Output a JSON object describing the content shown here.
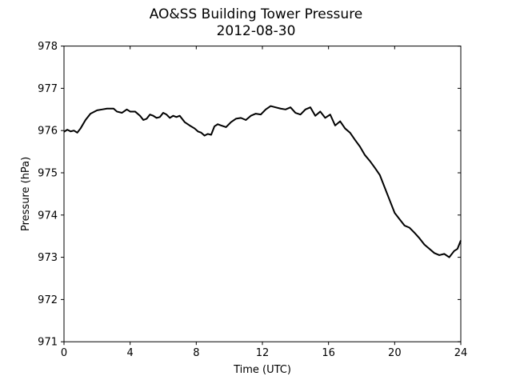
{
  "chart_data": {
    "type": "line",
    "title": "AO&SS Building Tower Pressure",
    "subtitle": "2012-08-30",
    "xlabel": "Time (UTC)",
    "ylabel": "Pressure (hPa)",
    "xlim": [
      0,
      24
    ],
    "ylim": [
      971,
      978
    ],
    "xticks": [
      0,
      4,
      8,
      12,
      16,
      20,
      24
    ],
    "yticks": [
      971,
      972,
      973,
      974,
      975,
      976,
      977,
      978
    ],
    "grid": false,
    "series": [
      {
        "color": "#000000",
        "x": [
          0,
          0.2,
          0.4,
          0.6,
          0.8,
          1.0,
          1.3,
          1.6,
          2.0,
          2.3,
          2.6,
          3.0,
          3.2,
          3.5,
          3.8,
          4.0,
          4.3,
          4.6,
          4.8,
          5.0,
          5.2,
          5.4,
          5.6,
          5.8,
          6.0,
          6.2,
          6.4,
          6.6,
          6.8,
          7.0,
          7.3,
          7.6,
          7.9,
          8.1,
          8.3,
          8.5,
          8.7,
          8.9,
          9.1,
          9.3,
          9.5,
          9.8,
          10.1,
          10.4,
          10.7,
          11.0,
          11.3,
          11.6,
          11.9,
          12.2,
          12.5,
          12.8,
          13.1,
          13.4,
          13.7,
          14.0,
          14.3,
          14.6,
          14.9,
          15.2,
          15.5,
          15.8,
          16.1,
          16.4,
          16.7,
          17.0,
          17.3,
          17.6,
          17.9,
          18.2,
          18.5,
          18.8,
          19.1,
          19.4,
          19.7,
          20.0,
          20.3,
          20.6,
          20.9,
          21.2,
          21.5,
          21.8,
          22.1,
          22.4,
          22.7,
          23.0,
          23.3,
          23.6,
          23.8,
          24.0
        ],
        "values": [
          975.97,
          976.02,
          975.98,
          976.0,
          975.95,
          976.05,
          976.25,
          976.4,
          976.48,
          976.5,
          976.52,
          976.52,
          976.45,
          976.42,
          976.5,
          976.45,
          976.45,
          976.35,
          976.25,
          976.28,
          976.38,
          976.35,
          976.3,
          976.32,
          976.42,
          976.38,
          976.3,
          976.35,
          976.32,
          976.35,
          976.2,
          976.12,
          976.05,
          975.98,
          975.95,
          975.88,
          975.92,
          975.9,
          976.1,
          976.15,
          976.12,
          976.08,
          976.2,
          976.28,
          976.3,
          976.25,
          976.35,
          976.4,
          976.38,
          976.5,
          976.58,
          976.55,
          976.52,
          976.5,
          976.55,
          976.42,
          976.38,
          976.5,
          976.55,
          976.35,
          976.45,
          976.3,
          976.38,
          976.12,
          976.22,
          976.05,
          975.95,
          975.78,
          975.62,
          975.42,
          975.28,
          975.12,
          974.95,
          974.65,
          974.35,
          974.05,
          973.9,
          973.75,
          973.7,
          973.58,
          973.45,
          973.3,
          973.2,
          973.1,
          973.05,
          973.08,
          973.0,
          973.15,
          973.2,
          973.4
        ]
      }
    ]
  }
}
